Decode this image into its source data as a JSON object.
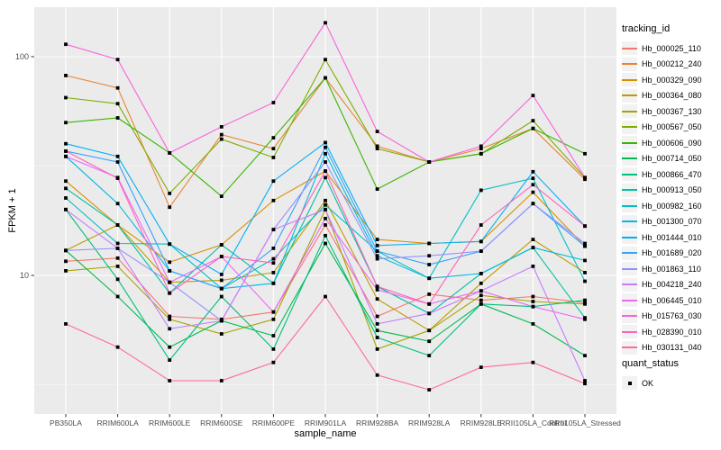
{
  "chart_data": {
    "type": "line",
    "xlabel": "sample_name",
    "ylabel": "FPKM + 1",
    "y_scale": "log10",
    "y_tick_labels": [
      "100",
      "10"
    ],
    "y_ticks": [
      100,
      10
    ],
    "y_minor": [
      31.62,
      3.162
    ],
    "ylim": [
      2.3,
      170
    ],
    "grid": true,
    "panel_bg": "#EBEBEB",
    "grid_color": "#FFFFFF",
    "tick_color": "#333333",
    "axis_text_color": "#4D4D4D",
    "point_shape": "black-square",
    "legend_position": "right",
    "categories": [
      "PB350LA",
      "RRIM600LA",
      "RRIM600LE",
      "RRIM600SE",
      "RRIM600PE",
      "RRIM901LA",
      "RRIM928BA",
      "RRIM928LA",
      "RRIM928LE",
      "RRII105LA_Control",
      "RRII105LA_Stressed"
    ],
    "series": [
      {
        "name": "Hb_000025_110",
        "color": "#F8766D",
        "values": [
          11.6,
          12.0,
          6.5,
          6.3,
          6.8,
          17.0,
          6.5,
          8.2,
          7.7,
          8.0,
          7.5
        ]
      },
      {
        "name": "Hb_000212_240",
        "color": "#EA8331",
        "values": [
          82,
          72,
          20.5,
          44,
          38,
          80,
          39,
          33,
          38,
          47,
          27.5
        ]
      },
      {
        "name": "Hb_000329_090",
        "color": "#D89000",
        "values": [
          27,
          17,
          11.5,
          13.8,
          22,
          30,
          14.6,
          14,
          14.3,
          24,
          13.6
        ]
      },
      {
        "name": "Hb_000364_080",
        "color": "#C09B00",
        "values": [
          13,
          17,
          9.3,
          9.5,
          10.3,
          22,
          7.8,
          5.6,
          9.2,
          14.6,
          10.3
        ]
      },
      {
        "name": "Hb_000367_130",
        "color": "#A3A500",
        "values": [
          10.5,
          11,
          6.3,
          5.4,
          6.3,
          20,
          4.6,
          5.6,
          8.1,
          7.6,
          7.4
        ]
      },
      {
        "name": "Hb_000567_050",
        "color": "#7CAE00",
        "values": [
          65,
          61,
          23.7,
          42,
          34.6,
          97,
          38,
          33,
          36,
          51,
          28
        ]
      },
      {
        "name": "Hb_000606_090",
        "color": "#39B600",
        "values": [
          50,
          52.5,
          36.3,
          23,
          42.6,
          80,
          24.8,
          33,
          36,
          47,
          36
        ]
      },
      {
        "name": "Hb_000714_050",
        "color": "#00BB4E",
        "values": [
          13,
          8.0,
          4.7,
          6.2,
          5.3,
          14,
          5.6,
          5.0,
          7.4,
          6.0,
          4.3
        ]
      },
      {
        "name": "Hb_000866_470",
        "color": "#00BF7D",
        "values": [
          20,
          9.6,
          4.1,
          8.0,
          4.6,
          15.2,
          5.2,
          4.3,
          7.4,
          7.2,
          7.7
        ]
      },
      {
        "name": "Hb_000913_050",
        "color": "#00C1A3",
        "values": [
          25,
          17,
          8.3,
          13.8,
          9.2,
          28,
          8.9,
          6.7,
          10.2,
          13.4,
          6.4
        ]
      },
      {
        "name": "Hb_000982_160",
        "color": "#00BFC4",
        "values": [
          22.6,
          14,
          13.9,
          8.7,
          11.9,
          21,
          12.9,
          9.7,
          24.5,
          27.8,
          9.4
        ]
      },
      {
        "name": "Hb_001300_070",
        "color": "#00BAE0",
        "values": [
          35,
          21.3,
          10.5,
          8.7,
          9.2,
          36,
          12.3,
          9.7,
          10.2,
          13.4,
          11.7
        ]
      },
      {
        "name": "Hb_001444_010",
        "color": "#00B0F6",
        "values": [
          40,
          35,
          13.9,
          10.1,
          27,
          40.5,
          13.7,
          14,
          14.3,
          29.8,
          16.8
        ]
      },
      {
        "name": "Hb_001689_020",
        "color": "#35A2FF",
        "values": [
          37,
          33,
          10.5,
          8.7,
          13.3,
          38.5,
          12.9,
          11.2,
          12.9,
          21.3,
          13.6
        ]
      },
      {
        "name": "Hb_001863_110",
        "color": "#9590FF",
        "values": [
          13,
          13.3,
          9.3,
          6.2,
          16.2,
          33,
          11.9,
          12.3,
          12.9,
          21.3,
          14.0
        ]
      },
      {
        "name": "Hb_004218_240",
        "color": "#C77CFF",
        "values": [
          20,
          13.3,
          5.7,
          6.2,
          16.2,
          20,
          6.0,
          6.7,
          8.5,
          11.0,
          3.3
        ]
      },
      {
        "name": "Hb_006445_010",
        "color": "#E76BF3",
        "values": [
          35,
          28,
          9.3,
          12.2,
          6.8,
          18.2,
          8.6,
          7.4,
          8.5,
          7.2,
          6.3
        ]
      },
      {
        "name": "Hb_015763_030",
        "color": "#FA62DB",
        "values": [
          114,
          97,
          36.3,
          47.8,
          61.7,
          143,
          45.5,
          33,
          39,
          66.5,
          28
        ]
      },
      {
        "name": "Hb_028390_010",
        "color": "#FF62BC",
        "values": [
          37,
          27.8,
          8.3,
          12.2,
          11.4,
          30,
          8.9,
          7.4,
          17,
          26,
          16.8
        ]
      },
      {
        "name": "Hb_030131_040",
        "color": "#FF6A98",
        "values": [
          6.0,
          4.7,
          3.3,
          3.3,
          4.0,
          8.0,
          3.5,
          3.0,
          3.8,
          4.0,
          3.2
        ]
      }
    ]
  },
  "legend": {
    "tracking_title": "tracking_id",
    "quant_title": "quant_status",
    "quant_items": [
      {
        "label": "OK"
      }
    ]
  }
}
